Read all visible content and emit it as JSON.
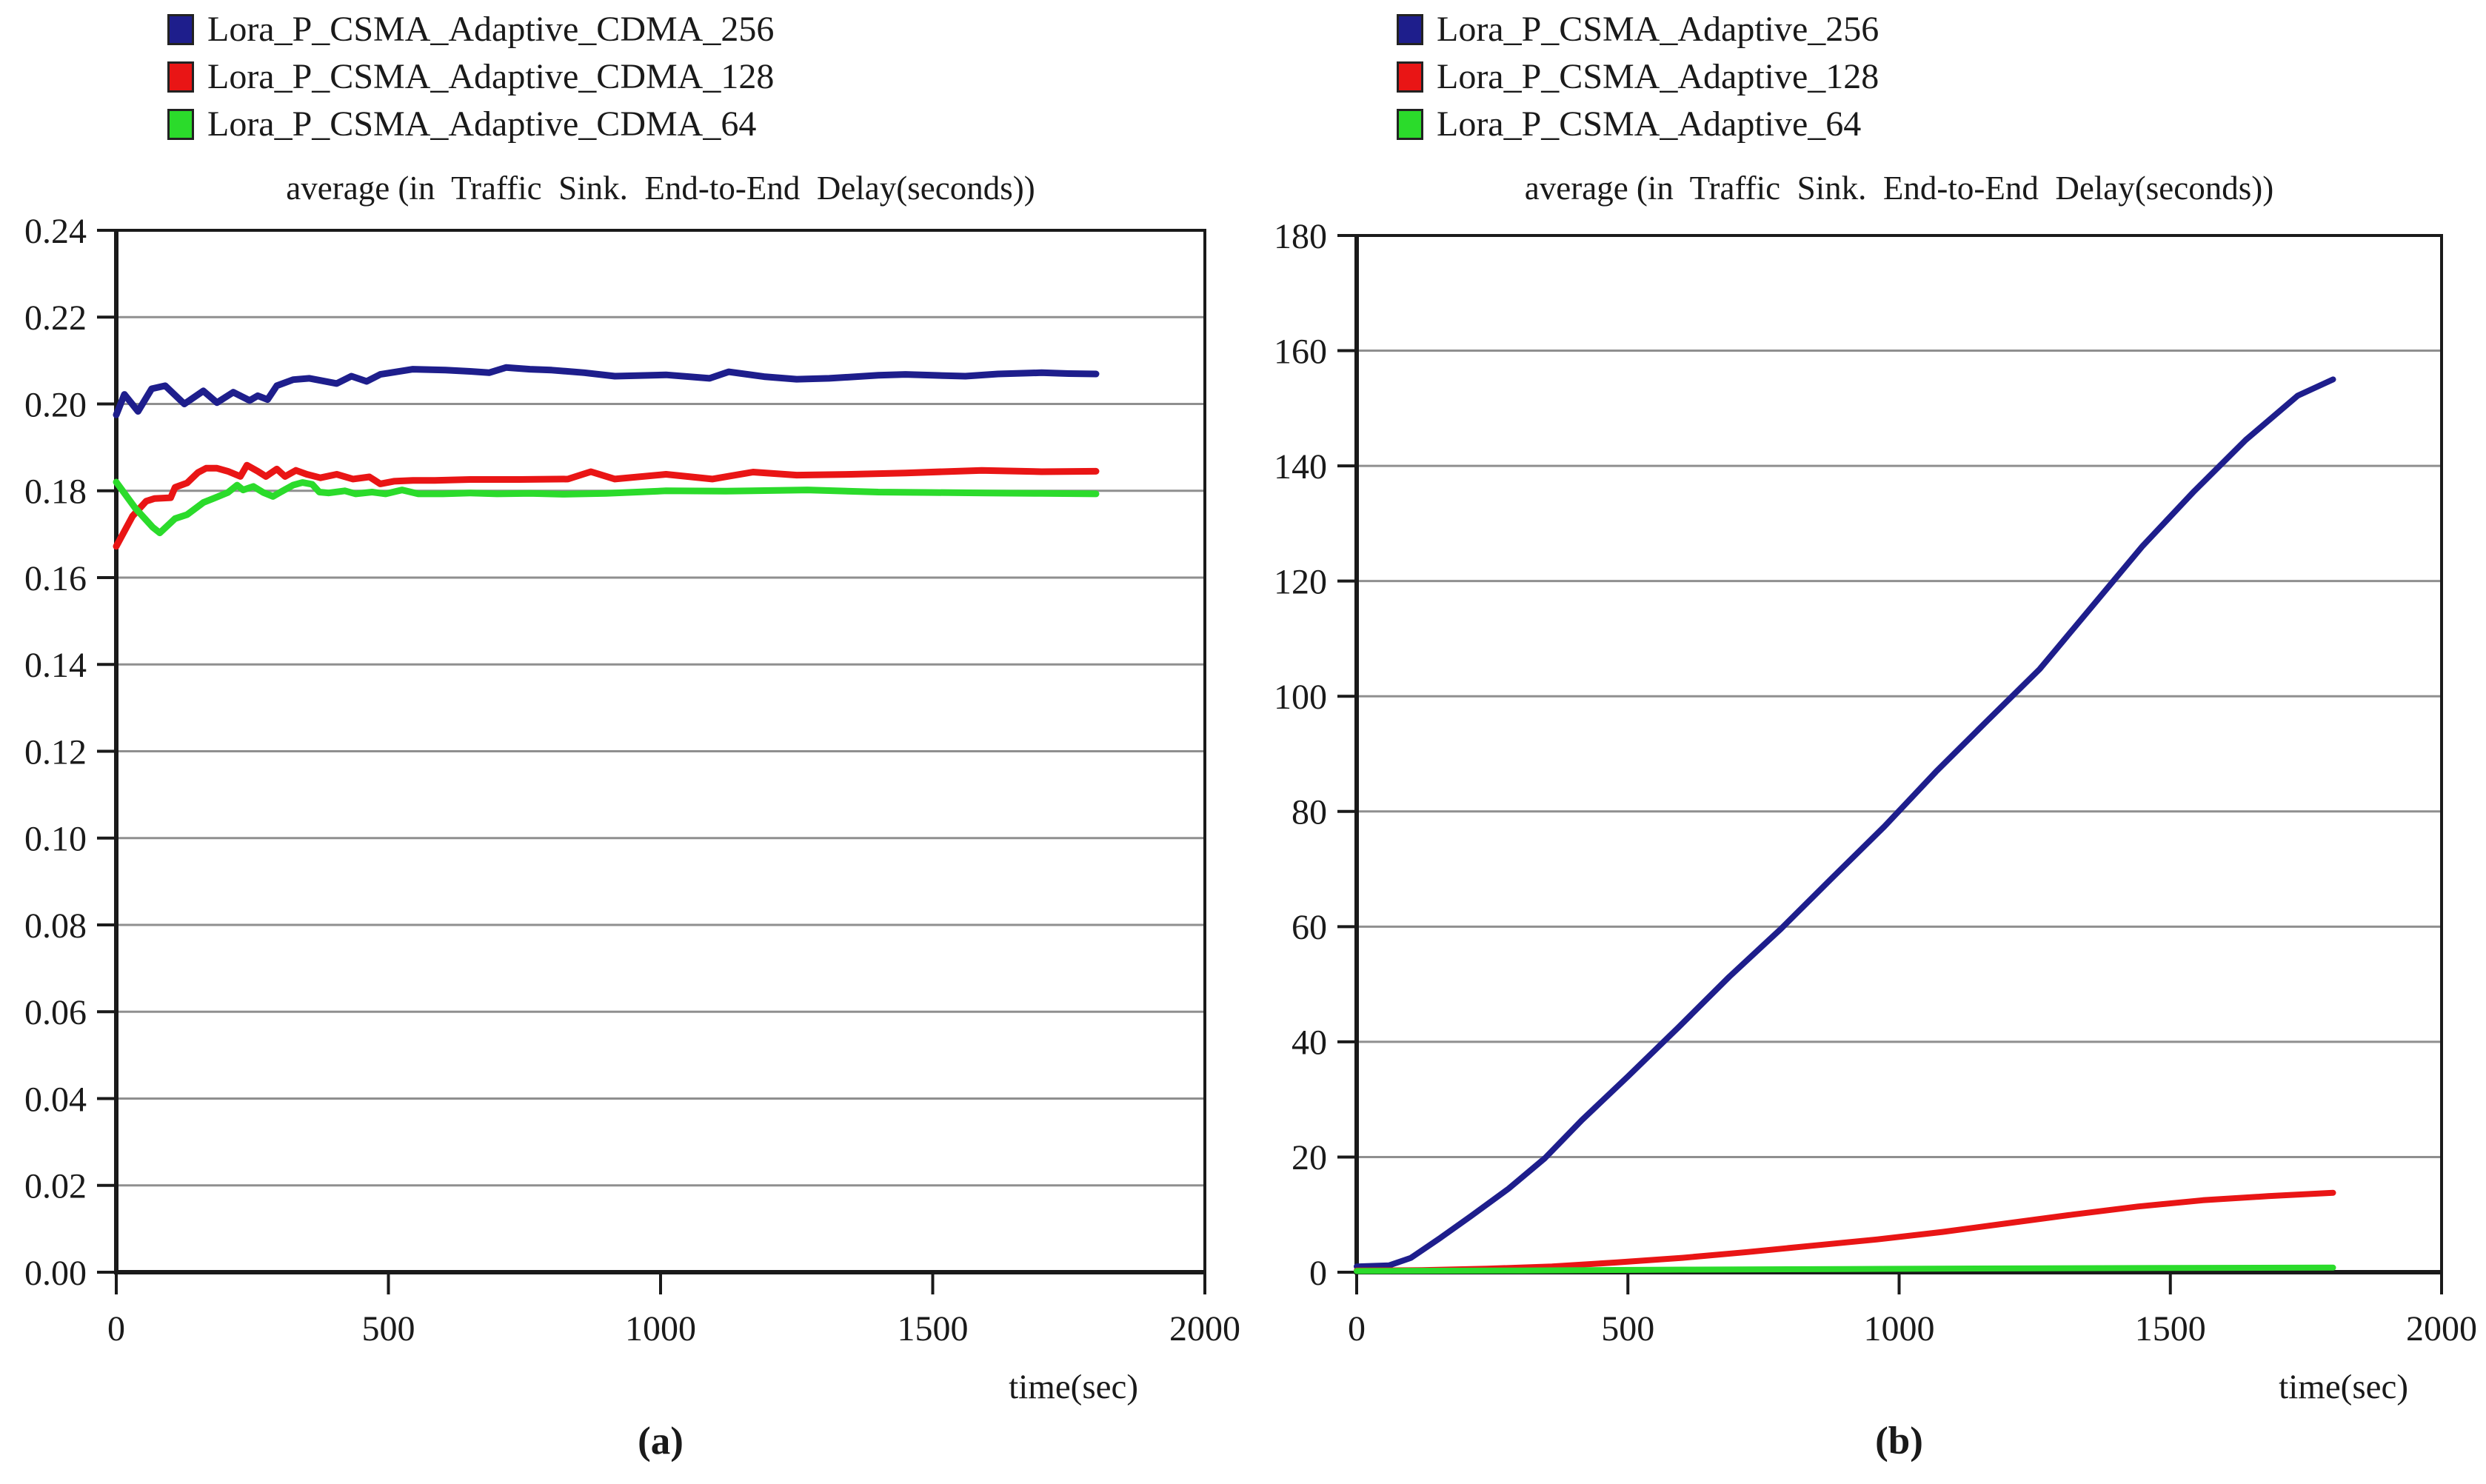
{
  "page": {
    "background": "#ffffff",
    "text_color": "#1a1a1a",
    "grid_color": "#8f8f8f",
    "axis_color": "#1a1a1a"
  },
  "chart_data": [
    {
      "id": "a",
      "type": "line",
      "title": "average (in  Traffic  Sink.  End-to-End  Delay(seconds))",
      "xlabel": "time(sec)",
      "caption": "(a)",
      "xlim": [
        0,
        2000
      ],
      "ylim": [
        0,
        0.24
      ],
      "xticks": [
        "0",
        "500",
        "1000",
        "1500",
        "2000"
      ],
      "yticks": [
        "0.00",
        "0.02",
        "0.04",
        "0.06",
        "0.08",
        "0.10",
        "0.12",
        "0.14",
        "0.16",
        "0.18",
        "0.20",
        "0.22",
        "0.24"
      ],
      "grid": "horizontal",
      "legend_position": "top-left",
      "series": [
        {
          "name": "Lora_P_CSMA_Adaptive_CDMA_256",
          "color": "#1e1e8c",
          "x": [
            0,
            15,
            40,
            65,
            90,
            125,
            160,
            185,
            215,
            245,
            260,
            278,
            295,
            325,
            355,
            405,
            432,
            460,
            485,
            545,
            605,
            650,
            685,
            716,
            760,
            800,
            860,
            916,
            1010,
            1090,
            1125,
            1190,
            1250,
            1310,
            1400,
            1450,
            1500,
            1560,
            1620,
            1700,
            1750,
            1800
          ],
          "y": [
            0.1975,
            0.2022,
            0.1983,
            0.2035,
            0.2042,
            0.2,
            0.203,
            0.2003,
            0.2027,
            0.2008,
            0.2019,
            0.201,
            0.2042,
            0.2056,
            0.2059,
            0.2047,
            0.2064,
            0.2052,
            0.2068,
            0.208,
            0.2078,
            0.2075,
            0.2072,
            0.2084,
            0.208,
            0.2078,
            0.2072,
            0.2064,
            0.2067,
            0.2059,
            0.2074,
            0.2063,
            0.2057,
            0.2059,
            0.2066,
            0.2068,
            0.2066,
            0.2064,
            0.2069,
            0.2072,
            0.207,
            0.2069
          ]
        },
        {
          "name": "Lora_P_CSMA_Adaptive_CDMA_128",
          "color": "#e91515",
          "x": [
            0,
            30,
            55,
            70,
            100,
            108,
            130,
            150,
            165,
            185,
            205,
            228,
            240,
            260,
            275,
            295,
            310,
            330,
            350,
            375,
            405,
            435,
            465,
            485,
            510,
            545,
            585,
            650,
            740,
            830,
            872,
            916,
            1010,
            1095,
            1170,
            1250,
            1350,
            1450,
            1590,
            1700,
            1800
          ],
          "y": [
            0.1672,
            0.1742,
            0.1776,
            0.1782,
            0.1784,
            0.1808,
            0.1818,
            0.1842,
            0.1852,
            0.1852,
            0.1845,
            0.1833,
            0.1859,
            0.1845,
            0.1833,
            0.185,
            0.1833,
            0.1847,
            0.1838,
            0.183,
            0.1838,
            0.1827,
            0.1832,
            0.1816,
            0.1822,
            0.1824,
            0.1824,
            0.1826,
            0.1826,
            0.1827,
            0.1844,
            0.1827,
            0.1838,
            0.1827,
            0.1843,
            0.1836,
            0.1838,
            0.1841,
            0.1847,
            0.1844,
            0.1845
          ]
        },
        {
          "name": "Lora_P_CSMA_Adaptive_CDMA_64",
          "color": "#2bdb2b",
          "x": [
            0,
            35,
            67,
            80,
            108,
            130,
            160,
            178,
            205,
            222,
            233,
            252,
            270,
            288,
            306,
            325,
            342,
            360,
            373,
            390,
            420,
            440,
            470,
            495,
            525,
            555,
            600,
            650,
            700,
            760,
            820,
            900,
            1010,
            1120,
            1270,
            1400,
            1500,
            1600,
            1700,
            1800
          ],
          "y": [
            0.182,
            0.176,
            0.1716,
            0.1703,
            0.1736,
            0.1745,
            0.1773,
            0.1782,
            0.1796,
            0.1813,
            0.1802,
            0.181,
            0.1796,
            0.1787,
            0.18,
            0.1813,
            0.1819,
            0.1815,
            0.1797,
            0.1795,
            0.18,
            0.1793,
            0.1797,
            0.1793,
            0.1802,
            0.1793,
            0.1793,
            0.1795,
            0.1793,
            0.1794,
            0.1792,
            0.1794,
            0.18,
            0.1799,
            0.1802,
            0.1797,
            0.1796,
            0.1795,
            0.1794,
            0.1793
          ]
        }
      ]
    },
    {
      "id": "b",
      "type": "line",
      "title": "average (in  Traffic  Sink.  End-to-End  Delay(seconds))",
      "xlabel": "time(sec)",
      "caption": "(b)",
      "xlim": [
        0,
        2000
      ],
      "ylim": [
        0,
        180
      ],
      "xticks": [
        "0",
        "500",
        "1000",
        "1500",
        "2000"
      ],
      "yticks": [
        "0",
        "20",
        "40",
        "60",
        "80",
        "100",
        "120",
        "140",
        "160",
        "180"
      ],
      "grid": "horizontal",
      "legend_position": "top-left",
      "series": [
        {
          "name": "Lora_P_CSMA_Adaptive_256",
          "color": "#1e1e8c",
          "x": [
            0,
            60,
            100,
            155,
            210,
            280,
            347,
            415,
            500,
            592,
            687,
            782,
            877,
            973,
            1068,
            1163,
            1259,
            1354,
            1449,
            1544,
            1639,
            1735,
            1800
          ],
          "y": [
            1.0,
            1.2,
            2.5,
            6.0,
            9.7,
            14.5,
            19.8,
            26.4,
            34.0,
            42.4,
            51.3,
            59.6,
            68.5,
            77.4,
            86.9,
            95.8,
            104.7,
            115.4,
            126.1,
            135.6,
            144.5,
            152.2,
            155.0
          ]
        },
        {
          "name": "Lora_P_CSMA_Adaptive_128",
          "color": "#e91515",
          "x": [
            0,
            120,
            240,
            360,
            480,
            600,
            720,
            840,
            960,
            1080,
            1200,
            1320,
            1440,
            1560,
            1680,
            1800
          ],
          "y": [
            0.3,
            0.35,
            0.6,
            1.0,
            1.7,
            2.5,
            3.5,
            4.6,
            5.7,
            7.0,
            8.5,
            10.0,
            11.4,
            12.5,
            13.2,
            13.8
          ]
        },
        {
          "name": "Lora_P_CSMA_Adaptive_64",
          "color": "#2bdb2b",
          "x": [
            0,
            300,
            600,
            900,
            1200,
            1500,
            1800
          ],
          "y": [
            0.2,
            0.3,
            0.45,
            0.55,
            0.65,
            0.75,
            0.8
          ]
        }
      ]
    }
  ]
}
